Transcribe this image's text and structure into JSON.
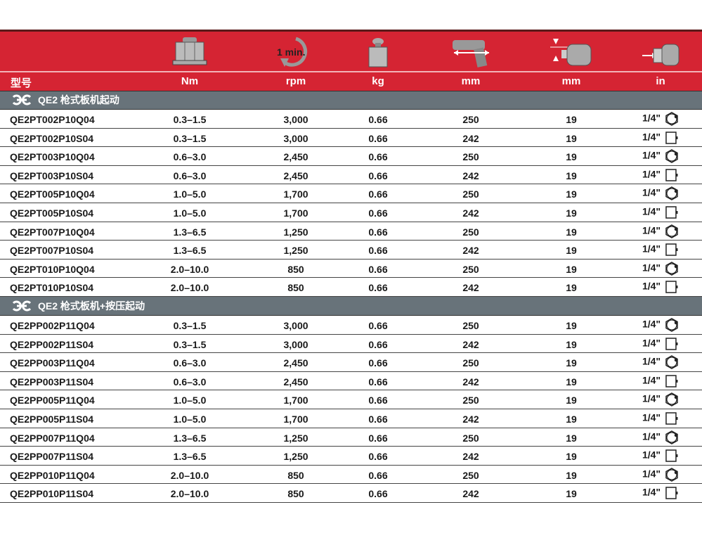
{
  "header": {
    "model_label": "型号",
    "units": [
      "Nm",
      "rpm",
      "kg",
      "mm",
      "mm",
      "in"
    ],
    "icons": [
      "torque-nut-icon",
      "speed-1min-icon",
      "weight-icon",
      "tool-length-icon",
      "center-distance-icon",
      "square-drive-icon"
    ],
    "speed_icon_text": "1 min."
  },
  "colors": {
    "header": "#d52433",
    "section": "#68737a"
  },
  "sections": [
    {
      "title": "QE2 枪式板机起动",
      "rows": [
        [
          "QE2PT002P10Q04",
          "0.3–1.5",
          "3,000",
          "0.66",
          "250",
          "19",
          "1/4\"",
          "hex"
        ],
        [
          "QE2PT002P10S04",
          "0.3–1.5",
          "3,000",
          "0.66",
          "242",
          "19",
          "1/4\"",
          "square"
        ],
        [
          "QE2PT003P10Q04",
          "0.6–3.0",
          "2,450",
          "0.66",
          "250",
          "19",
          "1/4\"",
          "hex"
        ],
        [
          "QE2PT003P10S04",
          "0.6–3.0",
          "2,450",
          "0.66",
          "242",
          "19",
          "1/4\"",
          "square"
        ],
        [
          "QE2PT005P10Q04",
          "1.0–5.0",
          "1,700",
          "0.66",
          "250",
          "19",
          "1/4\"",
          "hex"
        ],
        [
          "QE2PT005P10S04",
          "1.0–5.0",
          "1,700",
          "0.66",
          "242",
          "19",
          "1/4\"",
          "square"
        ],
        [
          "QE2PT007P10Q04",
          "1.3–6.5",
          "1,250",
          "0.66",
          "250",
          "19",
          "1/4\"",
          "hex"
        ],
        [
          "QE2PT007P10S04",
          "1.3–6.5",
          "1,250",
          "0.66",
          "242",
          "19",
          "1/4\"",
          "square"
        ],
        [
          "QE2PT010P10Q04",
          "2.0–10.0",
          "850",
          "0.66",
          "250",
          "19",
          "1/4\"",
          "hex"
        ],
        [
          "QE2PT010P10S04",
          "2.0–10.0",
          "850",
          "0.66",
          "242",
          "19",
          "1/4\"",
          "square"
        ]
      ]
    },
    {
      "title": "QE2 枪式板机+按压起动",
      "rows": [
        [
          "QE2PP002P11Q04",
          "0.3–1.5",
          "3,000",
          "0.66",
          "250",
          "19",
          "1/4\"",
          "hex"
        ],
        [
          "QE2PP002P11S04",
          "0.3–1.5",
          "3,000",
          "0.66",
          "242",
          "19",
          "1/4\"",
          "square"
        ],
        [
          "QE2PP003P11Q04",
          "0.6–3.0",
          "2,450",
          "0.66",
          "250",
          "19",
          "1/4\"",
          "hex"
        ],
        [
          "QE2PP003P11S04",
          "0.6–3.0",
          "2,450",
          "0.66",
          "242",
          "19",
          "1/4\"",
          "square"
        ],
        [
          "QE2PP005P11Q04",
          "1.0–5.0",
          "1,700",
          "0.66",
          "250",
          "19",
          "1/4\"",
          "hex"
        ],
        [
          "QE2PP005P11S04",
          "1.0–5.0",
          "1,700",
          "0.66",
          "242",
          "19",
          "1/4\"",
          "square"
        ],
        [
          "QE2PP007P11Q04",
          "1.3–6.5",
          "1,250",
          "0.66",
          "250",
          "19",
          "1/4\"",
          "hex"
        ],
        [
          "QE2PP007P11S04",
          "1.3–6.5",
          "1,250",
          "0.66",
          "242",
          "19",
          "1/4\"",
          "square"
        ],
        [
          "QE2PP010P11Q04",
          "2.0–10.0",
          "850",
          "0.66",
          "250",
          "19",
          "1/4\"",
          "hex"
        ],
        [
          "QE2PP010P11S04",
          "2.0–10.0",
          "850",
          "0.66",
          "242",
          "19",
          "1/4\"",
          "square"
        ]
      ]
    }
  ]
}
